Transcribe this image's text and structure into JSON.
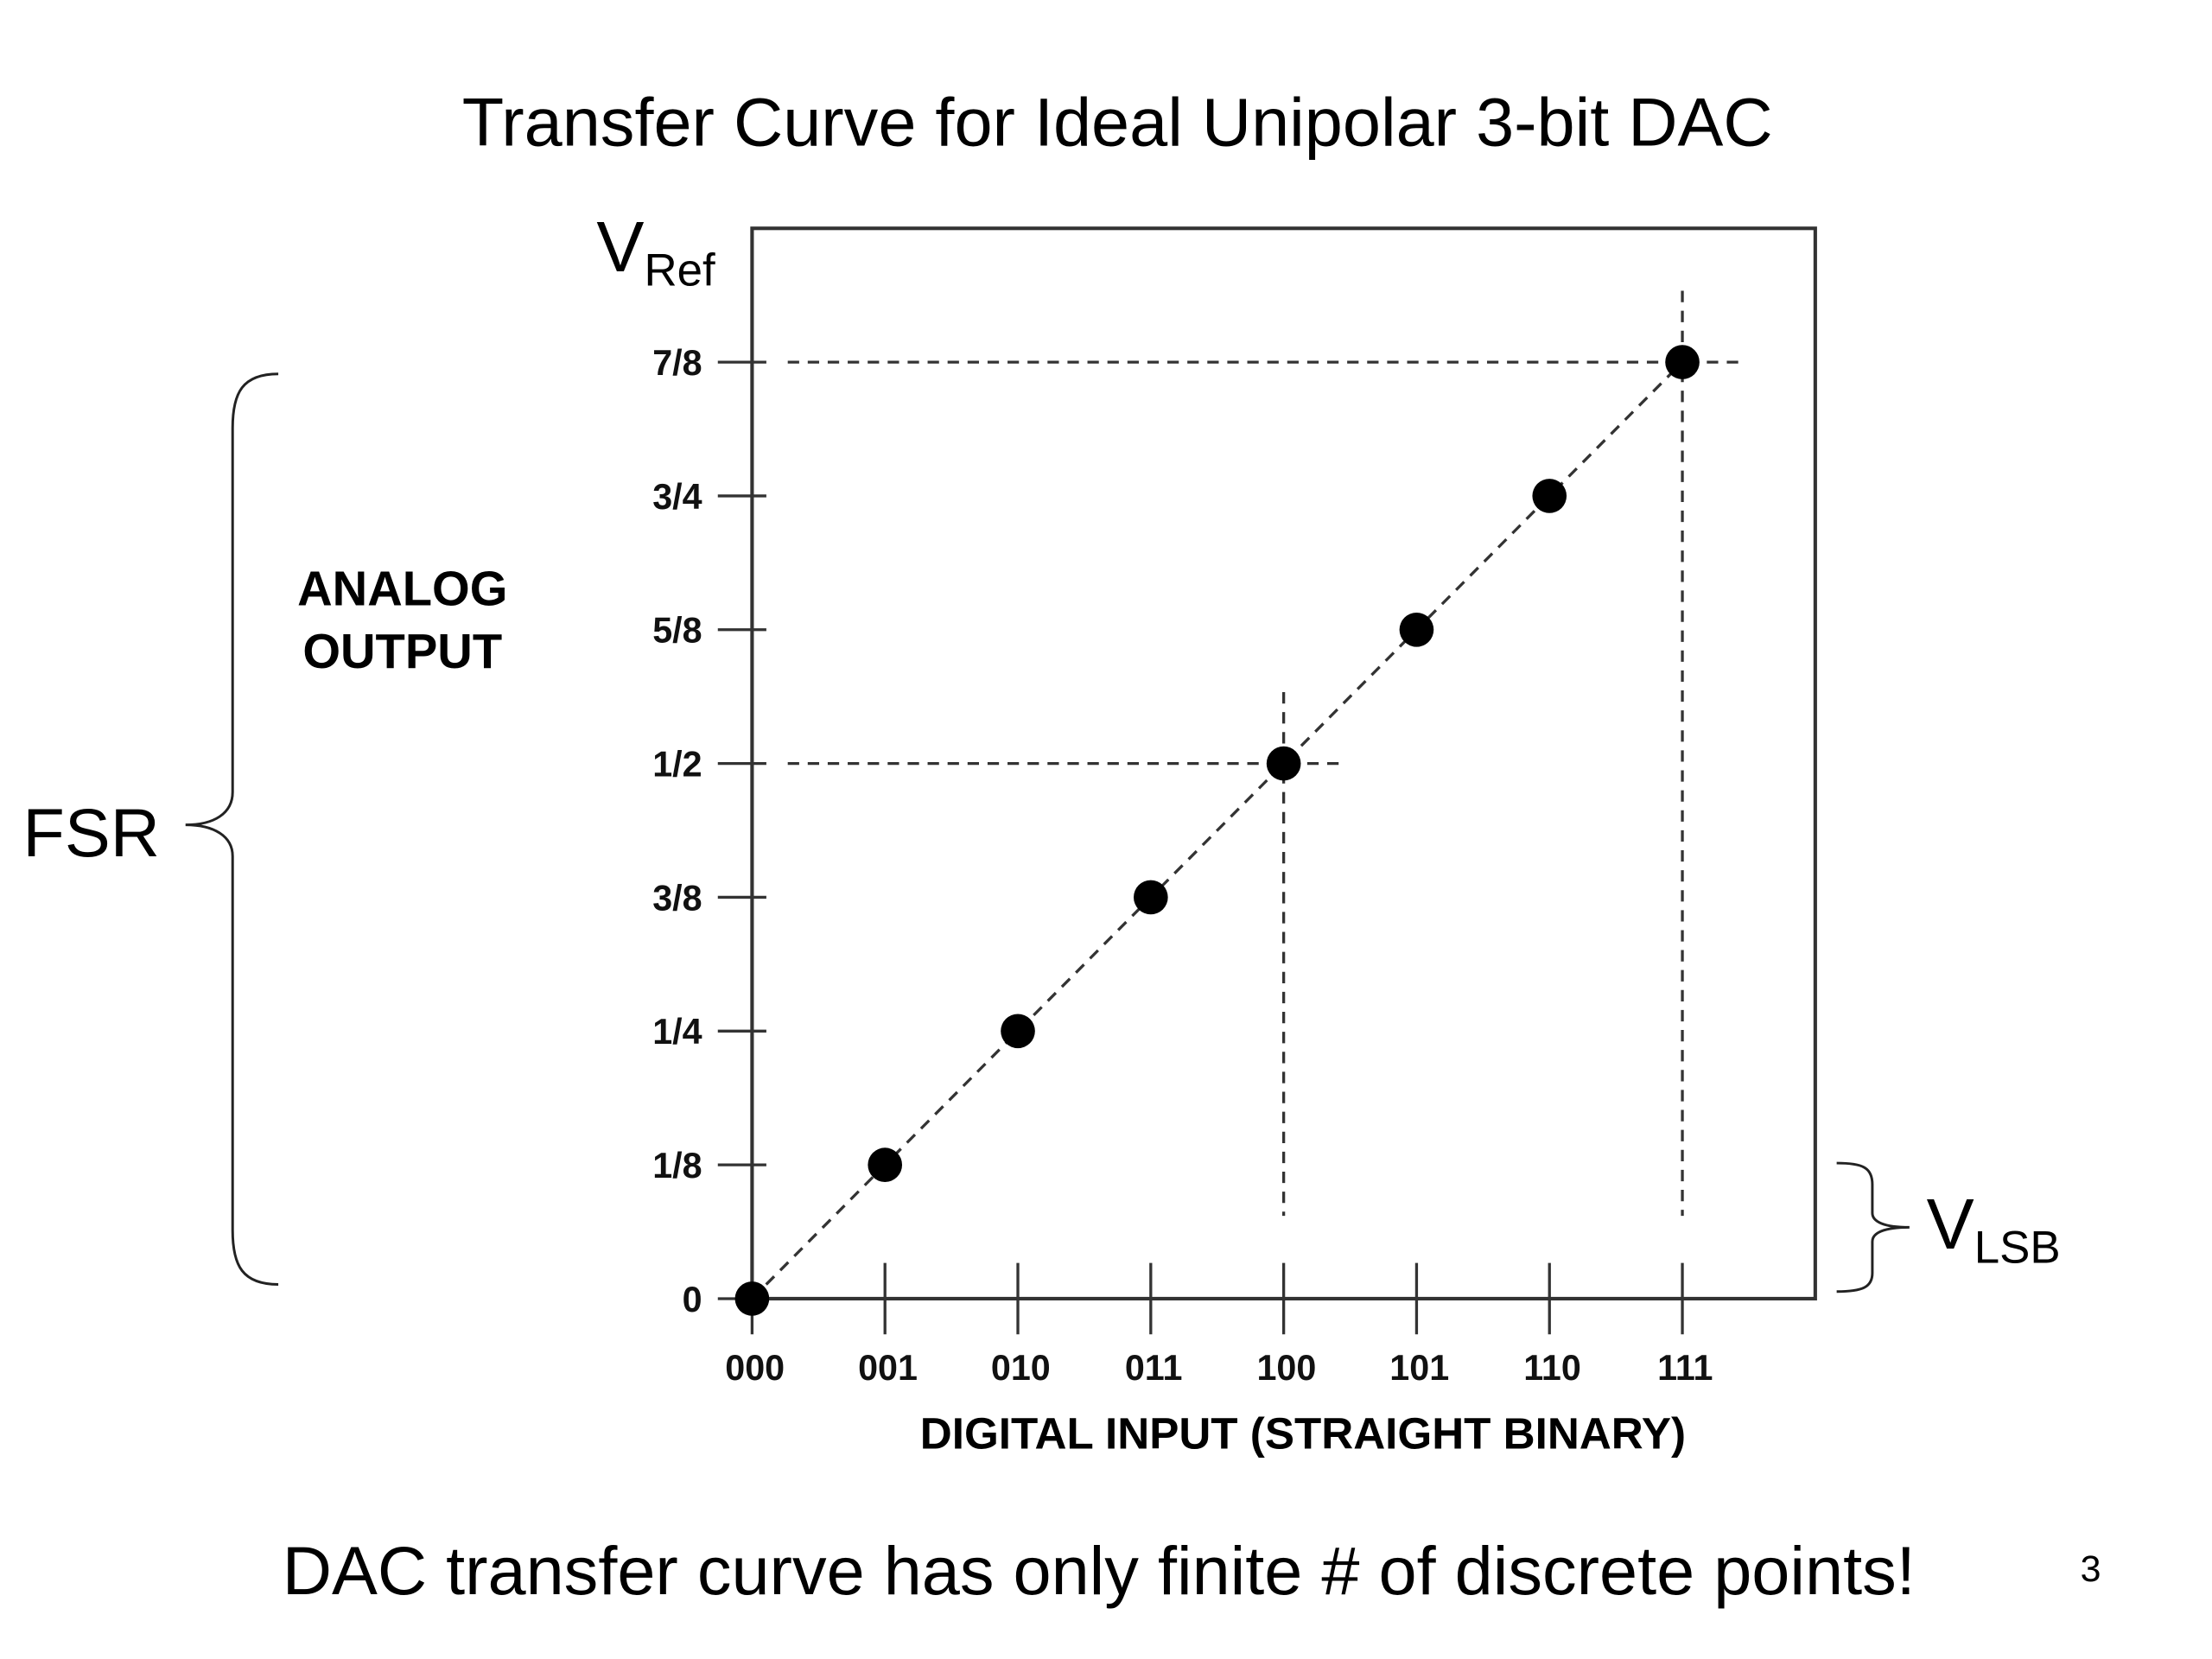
{
  "chart_data": {
    "type": "scatter",
    "title": "Transfer Curve for Ideal Unipolar 3-bit DAC",
    "categories": [
      "000",
      "001",
      "010",
      "011",
      "100",
      "101",
      "110",
      "111"
    ],
    "values": [
      0,
      0.125,
      0.25,
      0.375,
      0.5,
      0.625,
      0.75,
      0.875
    ],
    "color": "#000000",
    "ylim": [
      0,
      1
    ],
    "yticks": [
      {
        "value": 0,
        "label": "0"
      },
      {
        "value": 0.125,
        "label": "1/8"
      },
      {
        "value": 0.25,
        "label": "1/4"
      },
      {
        "value": 0.375,
        "label": "3/8"
      },
      {
        "value": 0.5,
        "label": "1/2"
      },
      {
        "value": 0.625,
        "label": "5/8"
      },
      {
        "value": 0.75,
        "label": "3/4"
      },
      {
        "value": 0.875,
        "label": "7/8"
      }
    ],
    "y_label": [
      "ANALOG",
      "OUTPUT"
    ],
    "x_label": "DIGITAL INPUT (STRAIGHT BINARY)",
    "vref": {
      "main": "V",
      "sub": "Ref"
    },
    "vlsb": {
      "main": "V",
      "sub": "LSB"
    },
    "fsr": "FSR",
    "footer": "DAC transfer curve has only finite # of discrete points!",
    "page_number": "3"
  }
}
